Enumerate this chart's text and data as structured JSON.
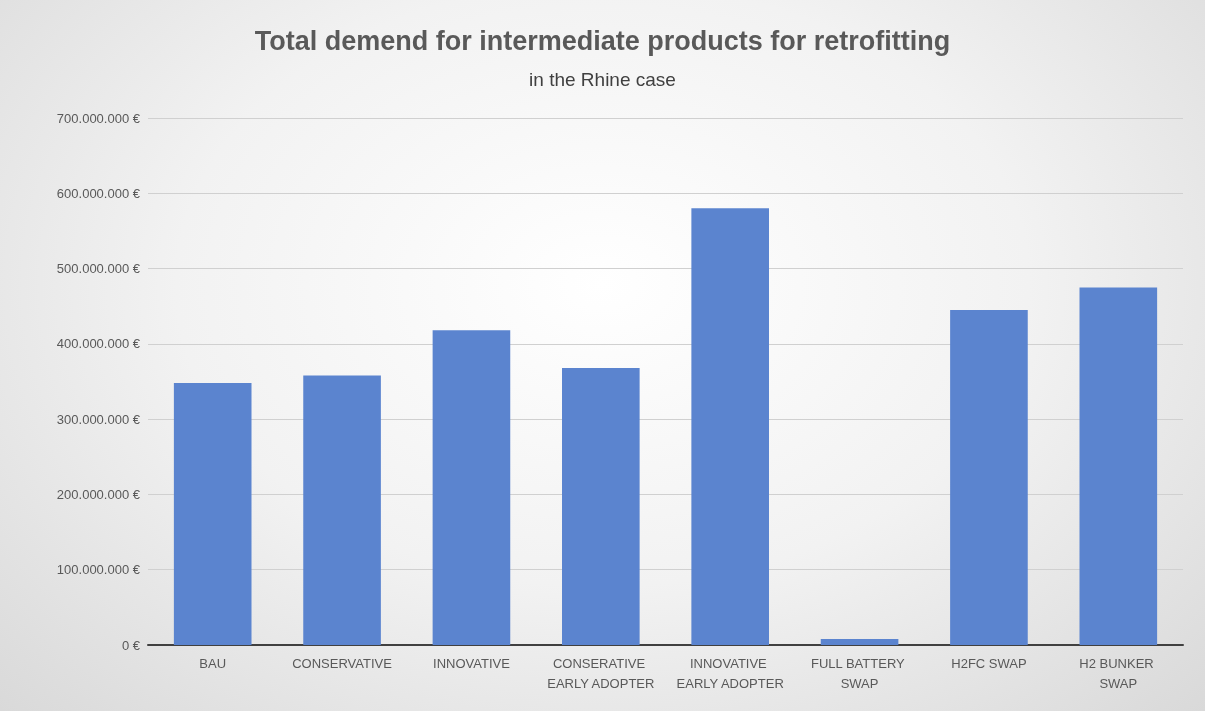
{
  "chart_data": {
    "type": "bar",
    "title": "Total demend for intermediate products for retrofitting",
    "subtitle": "in the Rhine case",
    "categories": [
      "BAU",
      "CONSERVATIVE",
      "INNOVATIVE",
      "CONSERATIVE EARLY ADOPTER",
      "INNOVATIVE EARLY ADOPTER",
      "FULL BATTERY SWAP",
      "H2FC SWAP",
      "H2 BUNKER SWAP"
    ],
    "values": [
      348000000,
      358000000,
      418000000,
      368000000,
      580000000,
      8000000,
      445000000,
      475000000
    ],
    "color": "#5b84cf",
    "ylim": [
      0,
      700000000
    ],
    "yticks": [
      {
        "value": 0,
        "label": "0 €"
      },
      {
        "value": 100000000,
        "label": "100.000.000 €"
      },
      {
        "value": 200000000,
        "label": "200.000.000 €"
      },
      {
        "value": 300000000,
        "label": "300.000.000 €"
      },
      {
        "value": 400000000,
        "label": "400.000.000 €"
      },
      {
        "value": 500000000,
        "label": "500.000.000 €"
      },
      {
        "value": 600000000,
        "label": "600.000.000 €"
      },
      {
        "value": 700000000,
        "label": "700.000.000 €"
      }
    ],
    "grid": "y"
  }
}
